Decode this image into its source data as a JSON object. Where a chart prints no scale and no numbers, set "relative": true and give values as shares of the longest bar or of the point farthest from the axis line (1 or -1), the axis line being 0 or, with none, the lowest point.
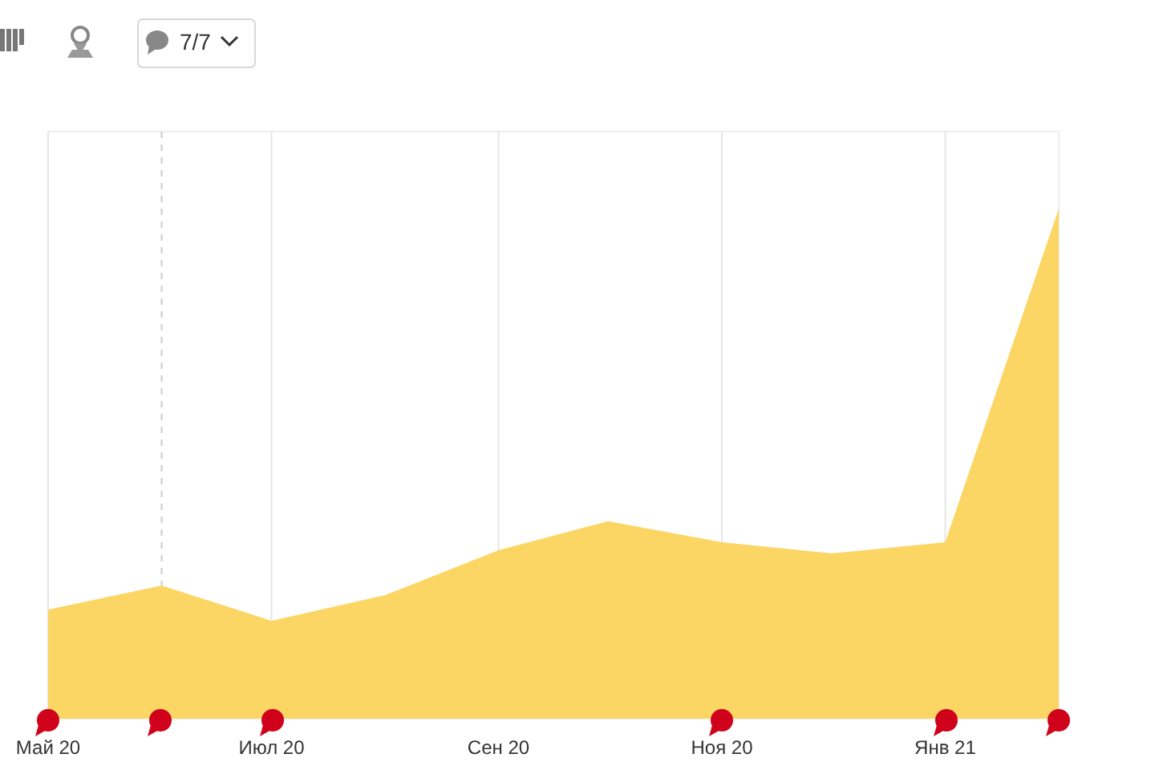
{
  "chart_data": {
    "type": "area",
    "relative": true,
    "x": [
      "2020-05",
      "2020-06",
      "2020-07",
      "2020-08",
      "2020-09",
      "2020-10",
      "2020-11",
      "2020-12",
      "2021-01",
      "2021-02"
    ],
    "series": [
      {
        "color": "#fcd665",
        "values": [
          0.214,
          0.261,
          0.192,
          0.242,
          0.33,
          0.387,
          0.346,
          0.324,
          0.346,
          1
        ]
      }
    ],
    "xlim": [
      "2020-05",
      "2021-02"
    ],
    "xticks": [
      {
        "value": "2020-05",
        "label": "Май 20"
      },
      {
        "value": "2020-07",
        "label": "Июл 20"
      },
      {
        "value": "2020-09",
        "label": "Сен 20"
      },
      {
        "value": "2020-11",
        "label": "Ноя 20"
      },
      {
        "value": "2021-01",
        "label": "Янв 21"
      }
    ],
    "grid": "x",
    "ref_lines": [
      {
        "axis": "x",
        "value": "2020-06",
        "line_style": "dashed",
        "color": "#cccccc"
      }
    ],
    "annotations": [
      "7/7"
    ]
  }
}
